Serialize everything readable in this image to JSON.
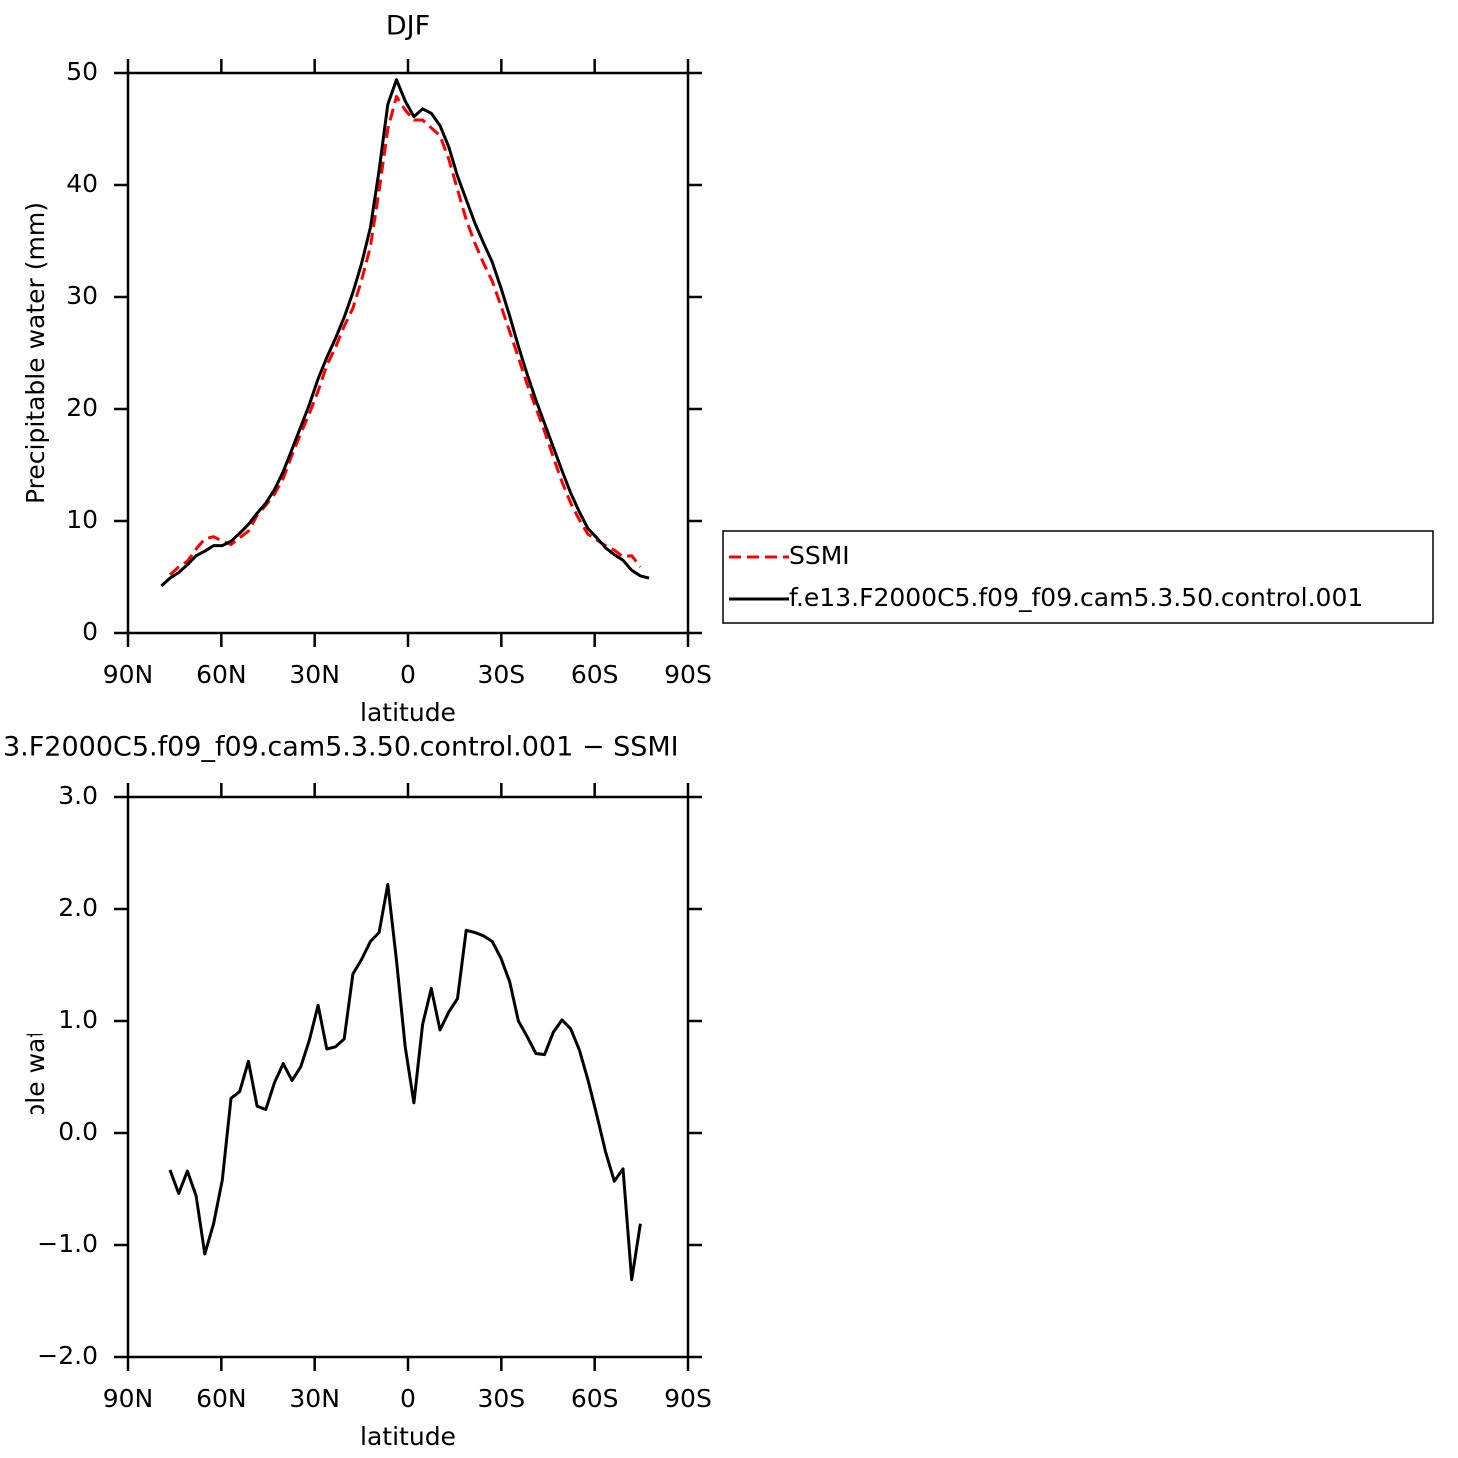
{
  "chart_data": [
    {
      "type": "line",
      "title": "DJF",
      "xlabel": "latitude",
      "ylabel": "Precipitable water (mm)",
      "x": [
        79.3,
        76.5,
        73.7,
        70.9,
        68.1,
        65.3,
        62.5,
        59.7,
        56.9,
        54.1,
        51.3,
        48.5,
        45.7,
        42.9,
        40.1,
        37.3,
        34.5,
        31.7,
        28.9,
        26.1,
        23.3,
        20.5,
        17.7,
        14.9,
        12.1,
        9.3,
        6.5,
        3.7,
        0.9,
        -1.9,
        -4.7,
        -7.5,
        -10.3,
        -13.1,
        -15.9,
        -18.7,
        -21.5,
        -24.3,
        -27.1,
        -29.9,
        -32.7,
        -35.5,
        -38.3,
        -41.1,
        -43.9,
        -46.7,
        -49.5,
        -52.3,
        -55.1,
        -57.9,
        -60.7,
        -63.5,
        -66.3,
        -69.1,
        -71.9,
        -74.7,
        -77.5
      ],
      "series": [
        {
          "name": "SSMI",
          "color": "#ff0000",
          "dash": true,
          "values": [
            null,
            5.2,
            5.9,
            6.4,
            7.5,
            8.4,
            8.6,
            8.2,
            7.9,
            8.5,
            9.1,
            10.5,
            11.4,
            12.4,
            13.8,
            15.9,
            17.8,
            19.6,
            21.6,
            23.9,
            25.5,
            27.4,
            29.0,
            31.5,
            34.5,
            39.5,
            45.0,
            47.9,
            46.7,
            45.8,
            45.8,
            45.1,
            44.4,
            42.3,
            39.6,
            36.9,
            34.8,
            33.0,
            31.4,
            29.2,
            26.9,
            24.6,
            22.2,
            20.1,
            18.0,
            15.7,
            13.5,
            11.6,
            10.1,
            8.8,
            8.3,
            7.8,
            7.4,
            6.8,
            6.9,
            5.9,
            null
          ]
        },
        {
          "name": "f.e13.F2000C5.f09_f09.cam5.3.50.control.001",
          "color": "#000000",
          "dash": false,
          "values": [
            4.2,
            4.9,
            5.4,
            6.1,
            6.9,
            7.3,
            7.8,
            7.8,
            8.2,
            8.9,
            9.7,
            10.7,
            11.6,
            12.8,
            14.4,
            16.4,
            18.4,
            20.4,
            22.7,
            24.6,
            26.3,
            28.2,
            30.4,
            33.0,
            36.2,
            41.3,
            47.2,
            49.4,
            47.5,
            46.1,
            46.8,
            46.4,
            45.3,
            43.4,
            40.8,
            38.7,
            36.6,
            34.8,
            33.1,
            30.8,
            28.3,
            25.6,
            23.1,
            20.8,
            18.7,
            16.6,
            14.5,
            12.5,
            10.8,
            9.3,
            8.5,
            7.6,
            7.0,
            6.5,
            5.6,
            5.1,
            4.9
          ]
        }
      ],
      "xlim": [
        90,
        -90
      ],
      "xticks": [
        {
          "value": 90,
          "label": "90N"
        },
        {
          "value": 60,
          "label": "60N"
        },
        {
          "value": 30,
          "label": "30N"
        },
        0,
        {
          "value": -30,
          "label": "30S"
        },
        {
          "value": -60,
          "label": "60S"
        },
        {
          "value": -90,
          "label": "90S"
        }
      ],
      "ylim": [
        0,
        50
      ],
      "yticks": [
        0,
        10,
        20,
        30,
        40,
        50
      ],
      "legend": "right"
    },
    {
      "type": "line",
      "title": "3.F2000C5.f09_f09.cam5.3.50.control.001 − SSMI",
      "xlabel": "latitude",
      "ylabel": "Precipitable water (mm)",
      "x": [
        76.5,
        73.7,
        70.9,
        68.1,
        65.3,
        62.5,
        59.7,
        56.9,
        54.1,
        51.3,
        48.5,
        45.7,
        42.9,
        40.1,
        37.3,
        34.5,
        31.7,
        28.9,
        26.1,
        23.3,
        20.5,
        17.7,
        14.9,
        12.1,
        9.3,
        6.5,
        3.7,
        0.9,
        -1.9,
        -4.7,
        -7.5,
        -10.3,
        -13.1,
        -15.9,
        -18.7,
        -21.5,
        -24.3,
        -27.1,
        -29.9,
        -32.7,
        -35.5,
        -38.3,
        -41.1,
        -43.9,
        -46.7,
        -49.5,
        -52.3,
        -55.1,
        -57.9,
        -60.7,
        -63.5,
        -66.3,
        -69.1,
        -71.9,
        -74.7
      ],
      "series": [
        {
          "color": "#000000",
          "dash": false,
          "values": [
            -0.33,
            -0.54,
            -0.34,
            -0.56,
            -1.08,
            -0.81,
            -0.42,
            0.31,
            0.37,
            0.64,
            0.24,
            0.21,
            0.45,
            0.62,
            0.47,
            0.59,
            0.83,
            1.14,
            0.75,
            0.77,
            0.84,
            1.42,
            1.55,
            1.71,
            1.79,
            2.22,
            1.54,
            0.77,
            0.27,
            0.97,
            1.29,
            0.92,
            1.08,
            1.2,
            1.81,
            1.79,
            1.76,
            1.71,
            1.56,
            1.35,
            1.0,
            0.86,
            0.71,
            0.7,
            0.9,
            1.01,
            0.93,
            0.74,
            0.47,
            0.16,
            -0.17,
            -0.43,
            -0.32,
            -1.31,
            -0.81
          ]
        }
      ],
      "xlim": [
        90,
        -90
      ],
      "xticks": [
        {
          "value": 90,
          "label": "90N"
        },
        {
          "value": 60,
          "label": "60N"
        },
        {
          "value": 30,
          "label": "30N"
        },
        0,
        {
          "value": -30,
          "label": "30S"
        },
        {
          "value": -60,
          "label": "60S"
        },
        {
          "value": -90,
          "label": "90S"
        }
      ],
      "ylim": [
        -2,
        3
      ],
      "yticks": [
        {
          "value": -2,
          "label": "−2.0"
        },
        {
          "value": -1,
          "label": "−1.0"
        },
        {
          "value": 0,
          "label": "0.0"
        },
        {
          "value": 1,
          "label": "1.0"
        },
        {
          "value": 2,
          "label": "2.0"
        },
        {
          "value": 3,
          "label": "3.0"
        }
      ]
    }
  ]
}
